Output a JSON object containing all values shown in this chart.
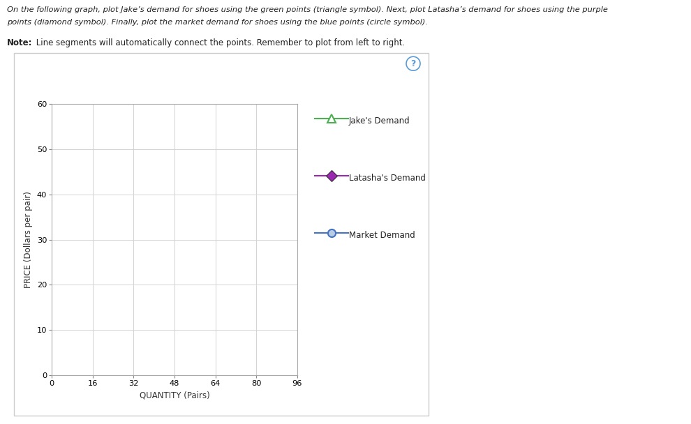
{
  "xlabel": "QUANTITY (Pairs)",
  "ylabel": "PRICE (Dollars per pair)",
  "xlim": [
    0,
    96
  ],
  "ylim": [
    0,
    60
  ],
  "xticks": [
    0,
    16,
    32,
    48,
    64,
    80,
    96
  ],
  "yticks": [
    0,
    10,
    20,
    30,
    40,
    50,
    60
  ],
  "grid_color": "#d3d3d3",
  "background_color": "#ffffff",
  "outer_bg": "#f5f5f5",
  "jake_color": "#4caf50",
  "latasha_color": "#9c27b0",
  "market_color": "#4472c4",
  "jake_label": "Jake's Demand",
  "latasha_label": "Latasha's Demand",
  "market_label": "Market Demand",
  "title_line1": "On the following graph, plot Jake’s demand for shoes using the green points (triangle symbol). Next, plot Latasha’s demand for shoes using the purple",
  "title_line2": "points (diamond symbol). Finally, plot the market demand for shoes using the blue points (circle symbol).",
  "note_bold": "Note:",
  "note_rest": " Line segments will automatically connect the points. Remember to plot from left to right.",
  "marker_size": 8,
  "line_width": 1.5
}
